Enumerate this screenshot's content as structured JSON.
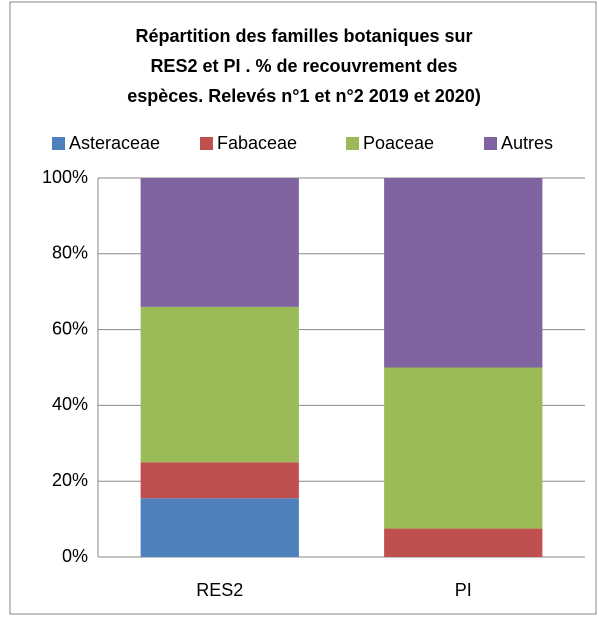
{
  "chart_data": {
    "type": "stacked_bar",
    "title": [
      "Répartition des familles botaniques sur",
      "RES2 et PI . % de recouvrement des",
      "espèces. Relevés n°1 et n°2 2019 et 2020)"
    ],
    "categories": [
      "RES2",
      "PI"
    ],
    "series": [
      {
        "name": "Asteraceae",
        "color": "#4f81bd",
        "values": [
          15.5,
          0
        ]
      },
      {
        "name": "Fabaceae",
        "color": "#c0504d",
        "values": [
          9.5,
          7.5
        ]
      },
      {
        "name": "Poaceae",
        "color": "#9bbb59",
        "values": [
          41,
          42.5
        ]
      },
      {
        "name": "Autres",
        "color": "#8064a2",
        "values": [
          34,
          50
        ]
      }
    ],
    "ylim": [
      0,
      100
    ],
    "yticks": [
      {
        "value": 0,
        "label": "0%"
      },
      {
        "value": 20,
        "label": "20%"
      },
      {
        "value": 40,
        "label": "40%"
      },
      {
        "value": 60,
        "label": "60%"
      },
      {
        "value": 80,
        "label": "80%"
      },
      {
        "value": 100,
        "label": "100%"
      }
    ],
    "grid": true,
    "legend": "top"
  }
}
